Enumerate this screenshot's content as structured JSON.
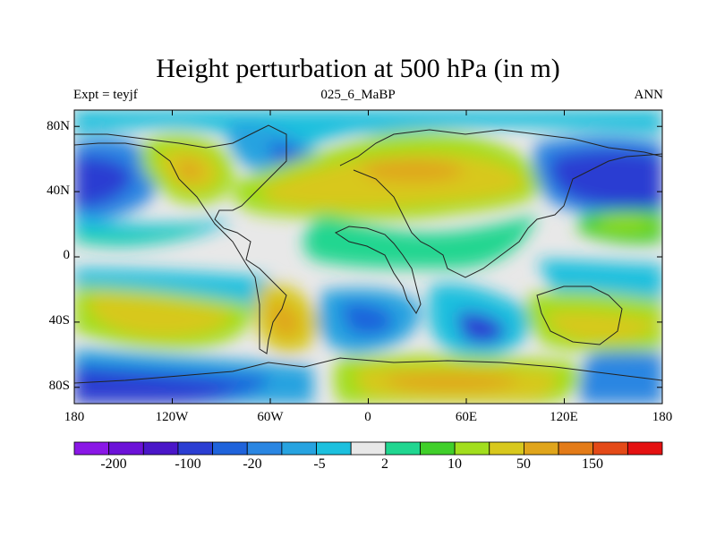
{
  "title": "Height perturbation at 500 hPa (in m)",
  "subtitle_left": "Expt = teyjf",
  "subtitle_center": "025_6_MaBP",
  "subtitle_right": "ANN",
  "lat_ticks": [
    "80N",
    "40N",
    "0",
    "40S",
    "80S"
  ],
  "lon_ticks": [
    "180",
    "120W",
    "60W",
    "0",
    "60E",
    "120E",
    "180"
  ],
  "colorbar": {
    "colors": [
      "#8a17e6",
      "#6c12d8",
      "#4a16c8",
      "#2b3ed2",
      "#1f63db",
      "#2a86e2",
      "#27a3e0",
      "#1cc0de",
      "#e8e8e8",
      "#20d690",
      "#40cf2a",
      "#a2de1d",
      "#d8c81d",
      "#e0a51b",
      "#e37b18",
      "#e44a18",
      "#e41111"
    ],
    "labels": [
      "-200",
      "-100",
      "-20",
      "-5",
      "2",
      "10",
      "50",
      "150"
    ]
  }
}
